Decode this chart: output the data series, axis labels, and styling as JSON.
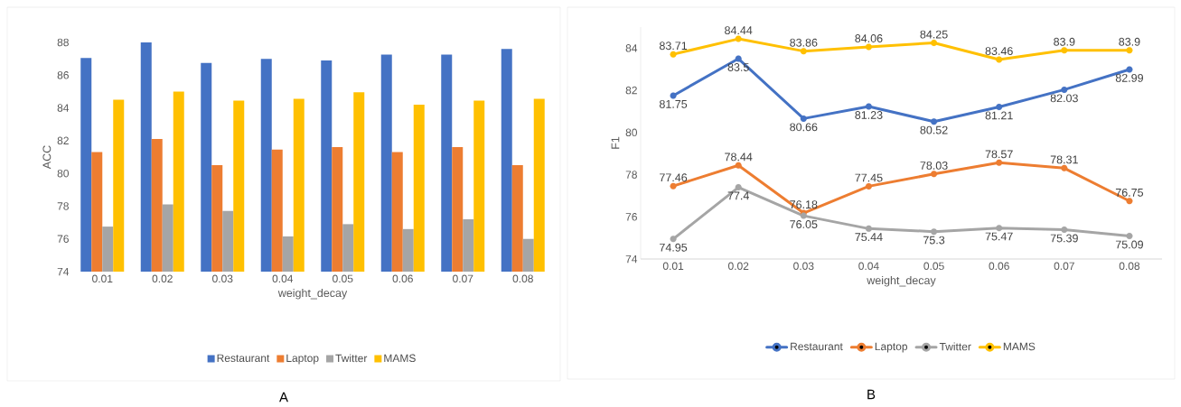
{
  "chart_data": [
    {
      "type": "bar",
      "xlabel": "weight_decay",
      "ylabel": "ACC",
      "categories": [
        "0.01",
        "0.02",
        "0.03",
        "0.04",
        "0.05",
        "0.06",
        "0.07",
        "0.08"
      ],
      "ylim": [
        74,
        88
      ],
      "yticks": [
        74,
        76,
        78,
        80,
        82,
        84,
        86,
        88
      ],
      "legend": "bottom",
      "annotations": [
        "A"
      ],
      "series": [
        {
          "name": "Restaurant",
          "color": "#4472c4",
          "values": [
            87.05,
            88.0,
            86.75,
            87.0,
            86.9,
            87.25,
            87.25,
            87.6
          ]
        },
        {
          "name": "Laptop",
          "color": "#ed7d31",
          "values": [
            81.3,
            82.1,
            80.5,
            81.45,
            81.6,
            81.3,
            81.6,
            80.5
          ]
        },
        {
          "name": "Twitter",
          "color": "#a5a5a5",
          "values": [
            76.75,
            78.1,
            77.7,
            76.15,
            76.9,
            76.6,
            77.2,
            76.0
          ]
        },
        {
          "name": "MAMS",
          "color": "#ffc000",
          "values": [
            84.5,
            85.0,
            84.45,
            84.55,
            84.95,
            84.2,
            84.45,
            84.55
          ]
        }
      ]
    },
    {
      "type": "line",
      "xlabel": "weight_decay",
      "ylabel": "F1",
      "categories": [
        "0.01",
        "0.02",
        "0.03",
        "0.04",
        "0.05",
        "0.06",
        "0.07",
        "0.08"
      ],
      "ylim": [
        74,
        85
      ],
      "yticks": [
        74,
        76,
        78,
        80,
        82,
        84
      ],
      "legend": "bottom",
      "marker": "circle",
      "data_labels": true,
      "annotations": [
        "B"
      ],
      "series": [
        {
          "name": "Restaurant",
          "color": "#4472c4",
          "values": [
            81.75,
            83.5,
            80.66,
            81.23,
            80.52,
            81.21,
            82.03,
            82.99
          ]
        },
        {
          "name": "Laptop",
          "color": "#ed7d31",
          "values": [
            77.46,
            78.44,
            76.18,
            77.45,
            78.03,
            78.57,
            78.31,
            76.75
          ]
        },
        {
          "name": "Twitter",
          "color": "#a5a5a5",
          "values": [
            74.95,
            77.4,
            76.05,
            75.44,
            75.3,
            75.47,
            75.39,
            75.09
          ]
        },
        {
          "name": "MAMS",
          "color": "#ffc000",
          "values": [
            83.71,
            84.44,
            83.86,
            84.06,
            84.25,
            83.46,
            83.9,
            83.9
          ]
        }
      ]
    }
  ]
}
